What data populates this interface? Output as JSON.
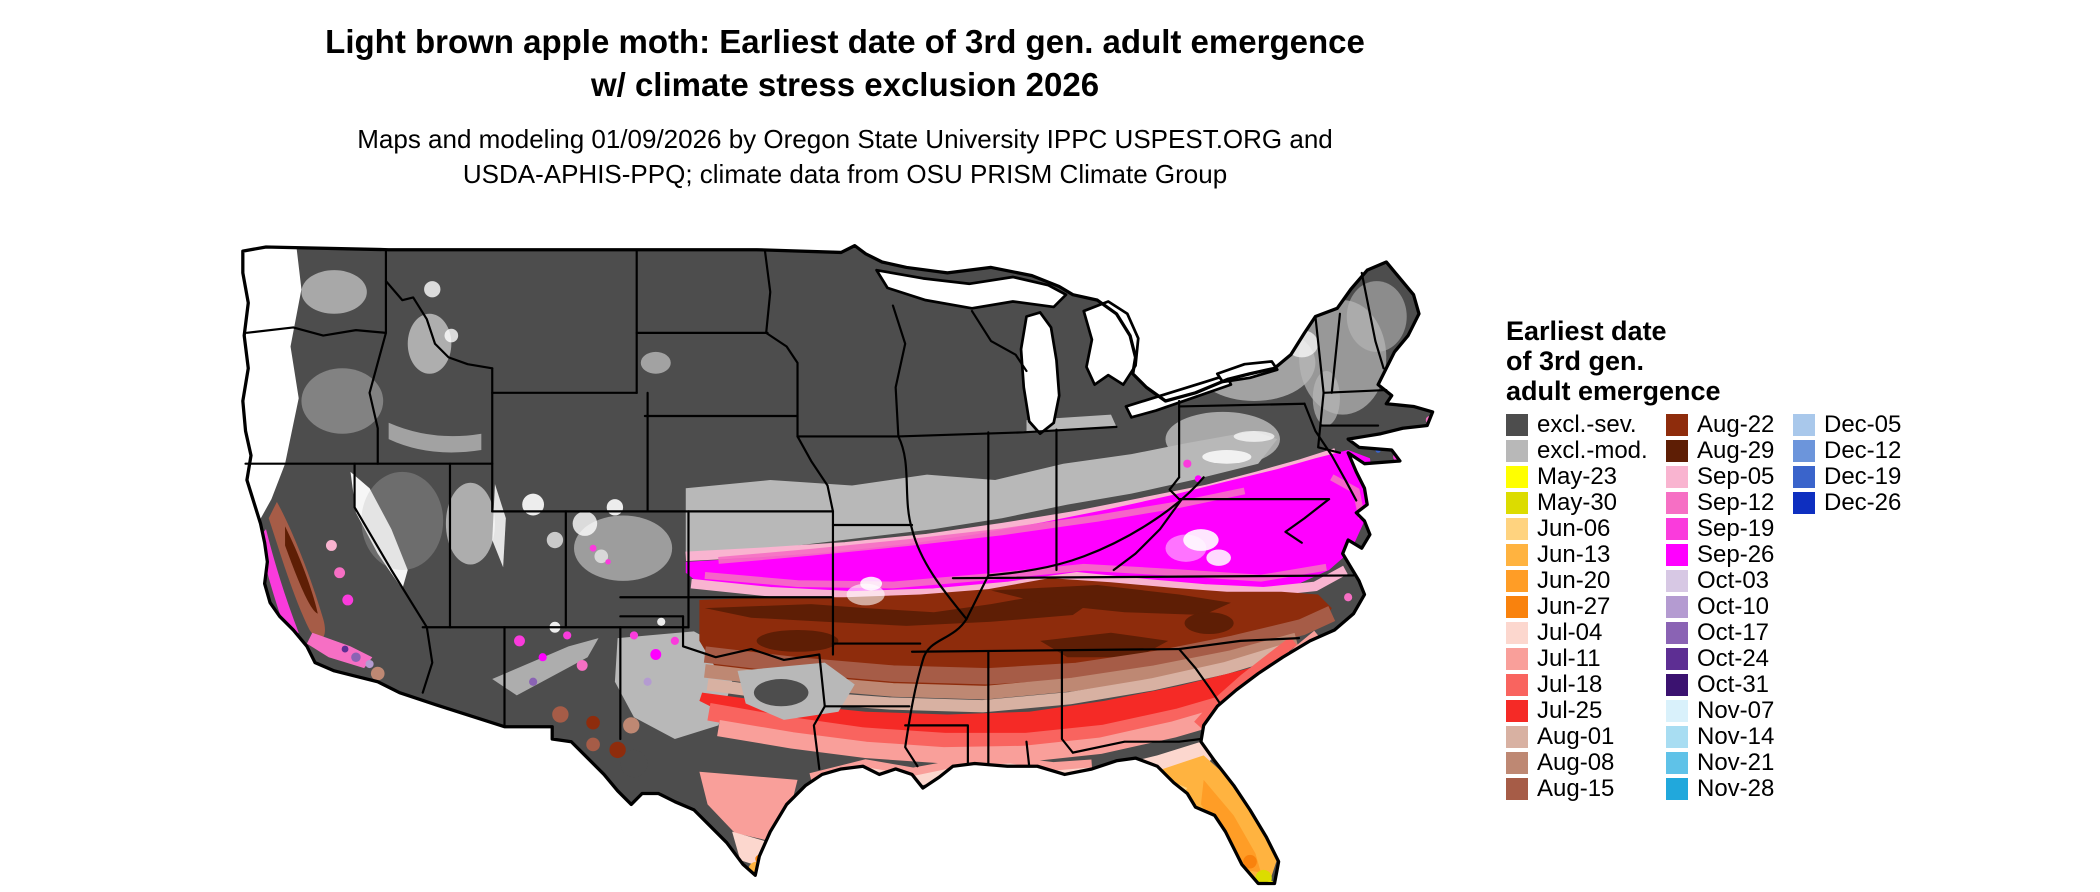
{
  "title": {
    "line1": "Light brown apple moth: Earliest date of 3rd gen. adult emergence",
    "line2": "w/ climate stress exclusion 2026"
  },
  "subtitle": {
    "line1": "Maps and modeling 01/09/2026 by Oregon State University IPPC USPEST.ORG and",
    "line2": "USDA-APHIS-PPQ; climate data from OSU PRISM Climate Group"
  },
  "map": {
    "region": "Continental United States",
    "special_colors": {
      "no-data": "#FFFFFF",
      "water": "#FFFFFF",
      "border": "#000000"
    }
  },
  "legend": {
    "title_lines": [
      "Earliest date",
      "of 3rd gen.",
      "adult emergence"
    ],
    "columns": [
      [
        {
          "label": "excl.-sev.",
          "color": "#4D4D4D"
        },
        {
          "label": "excl.-mod.",
          "color": "#B8B8B8"
        },
        {
          "label": "May-23",
          "color": "#FFFF00"
        },
        {
          "label": "May-30",
          "color": "#DCDC00"
        },
        {
          "label": "Jun-06",
          "color": "#FFD37F"
        },
        {
          "label": "Jun-13",
          "color": "#FFB340"
        },
        {
          "label": "Jun-20",
          "color": "#FF9D26"
        },
        {
          "label": "Jun-27",
          "color": "#F9820D"
        },
        {
          "label": "Jul-04",
          "color": "#FCD7CE"
        },
        {
          "label": "Jul-11",
          "color": "#F99F9A"
        },
        {
          "label": "Jul-18",
          "color": "#F9645F"
        },
        {
          "label": "Jul-25",
          "color": "#F52A26"
        },
        {
          "label": "Aug-01",
          "color": "#D8B1A2"
        },
        {
          "label": "Aug-08",
          "color": "#BE8873"
        },
        {
          "label": "Aug-15",
          "color": "#A65C47"
        }
      ],
      [
        {
          "label": "Aug-22",
          "color": "#8E2C0C"
        },
        {
          "label": "Aug-29",
          "color": "#5E1E05"
        },
        {
          "label": "Sep-05",
          "color": "#F9B4D0"
        },
        {
          "label": "Sep-12",
          "color": "#F66FC4"
        },
        {
          "label": "Sep-19",
          "color": "#FA3BDC"
        },
        {
          "label": "Sep-26",
          "color": "#FF00FF"
        },
        {
          "label": "Oct-03",
          "color": "#D7C8E4"
        },
        {
          "label": "Oct-10",
          "color": "#B49BD1"
        },
        {
          "label": "Oct-17",
          "color": "#8A63B4"
        },
        {
          "label": "Oct-24",
          "color": "#5D2E93"
        },
        {
          "label": "Oct-31",
          "color": "#3B1270"
        },
        {
          "label": "Nov-07",
          "color": "#D9F1FB"
        },
        {
          "label": "Nov-14",
          "color": "#A8DDF2"
        },
        {
          "label": "Nov-21",
          "color": "#5FC2E8"
        },
        {
          "label": "Nov-28",
          "color": "#21A8DC"
        }
      ],
      [
        {
          "label": "Dec-05",
          "color": "#A9C8EB"
        },
        {
          "label": "Dec-12",
          "color": "#6C95DB"
        },
        {
          "label": "Dec-19",
          "color": "#3A64CB"
        },
        {
          "label": "Dec-26",
          "color": "#0E2FC0"
        }
      ]
    ]
  }
}
